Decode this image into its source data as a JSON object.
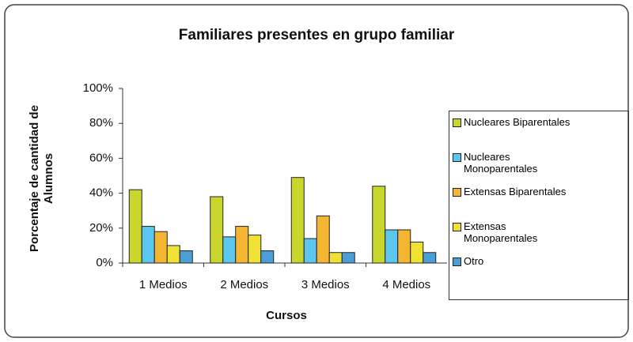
{
  "chart_data": {
    "type": "bar",
    "title": "Familiares presentes en grupo familiar",
    "x_label": "Cursos",
    "y_label": "Porcentaje de cantidad de Alumnos",
    "categories": [
      "1 Medios",
      "2 Medios",
      "3 Medios",
      "4 Medios"
    ],
    "series": [
      {
        "name": "Nucleares Biparentales",
        "color": "#c9d72c",
        "values": [
          42,
          38,
          49,
          44
        ]
      },
      {
        "name": "Nucleares Monoparentales",
        "color": "#5cc6ee",
        "values": [
          21,
          15,
          14,
          19
        ]
      },
      {
        "name": "Extensas Biparentales",
        "color": "#f4b631",
        "values": [
          18,
          21,
          27,
          19
        ]
      },
      {
        "name": "Extensas Monoparentales",
        "color": "#efe235",
        "values": [
          10,
          16,
          6,
          12
        ]
      },
      {
        "name": "Otro",
        "color": "#4b9fd6",
        "values": [
          7,
          7,
          6,
          6
        ]
      }
    ],
    "ylim": [
      0,
      100
    ],
    "yticks": [
      {
        "value": 0,
        "label": "0%"
      },
      {
        "value": 20,
        "label": "20%"
      },
      {
        "value": 40,
        "label": "40%"
      },
      {
        "value": 60,
        "label": "60%"
      },
      {
        "value": 80,
        "label": "80%"
      },
      {
        "value": 100,
        "label": "100%"
      }
    ],
    "legend": "right"
  }
}
